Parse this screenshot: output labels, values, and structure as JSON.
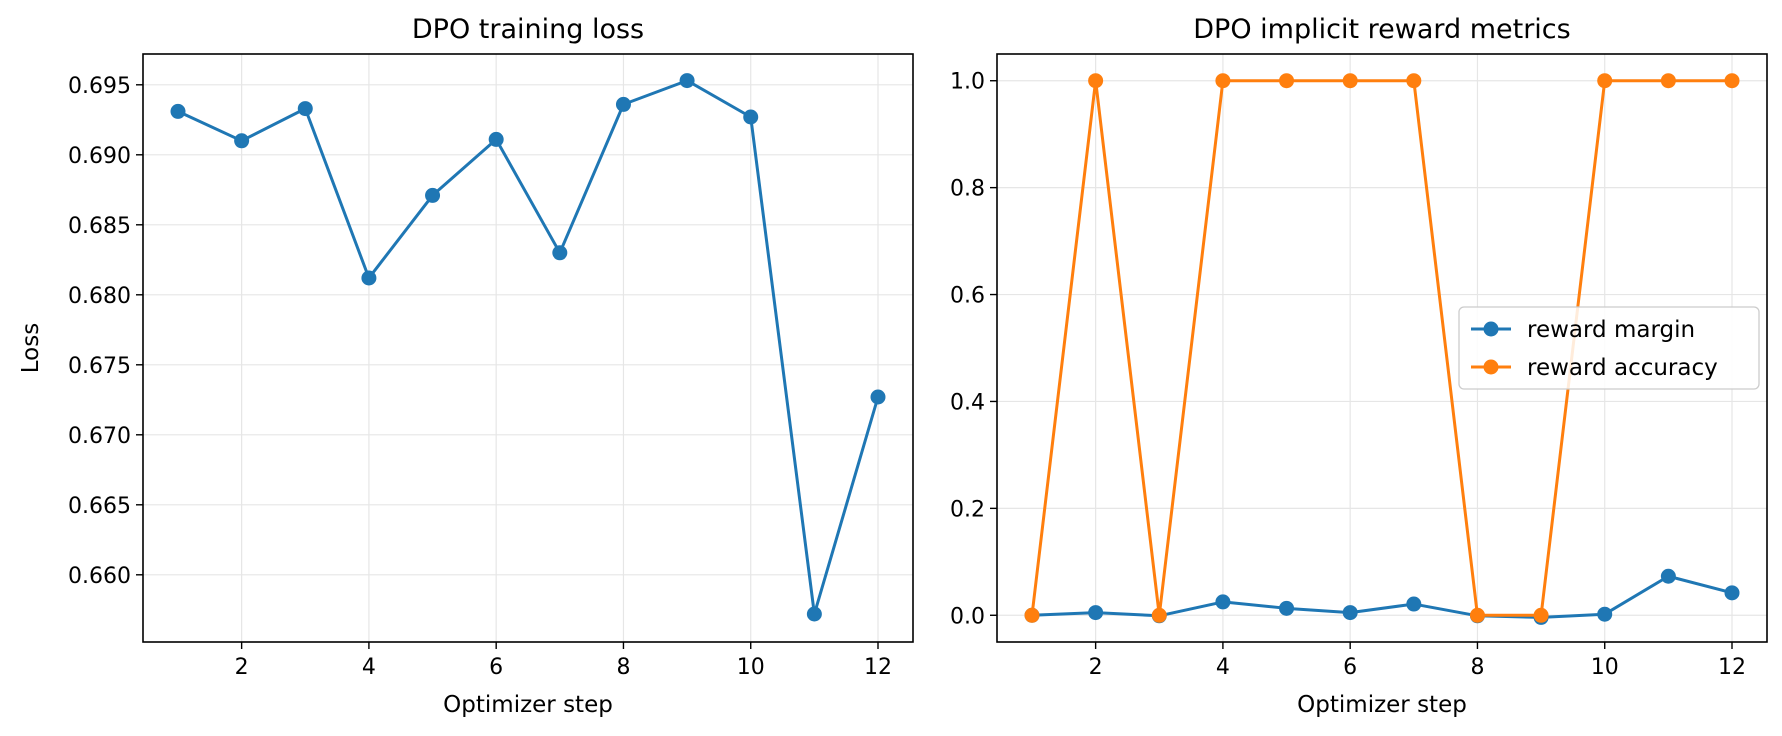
{
  "colors": {
    "blue": "#1f77b4",
    "orange": "#ff7f0e",
    "grid": "#e6e6e6",
    "axis": "#000000"
  },
  "chart_data": [
    {
      "type": "line",
      "title": "DPO training loss",
      "xlabel": "Optimizer step",
      "ylabel": "Loss",
      "grid": true,
      "xlim": [
        0.45,
        12.55
      ],
      "ylim": [
        0.6552,
        0.6972
      ],
      "xticks": [
        2,
        4,
        6,
        8,
        10,
        12
      ],
      "xtick_labels": [
        "2",
        "4",
        "6",
        "8",
        "10",
        "12"
      ],
      "yticks": [
        0.66,
        0.665,
        0.67,
        0.675,
        0.68,
        0.685,
        0.69,
        0.695
      ],
      "ytick_labels": [
        "0.660",
        "0.665",
        "0.670",
        "0.675",
        "0.680",
        "0.685",
        "0.690",
        "0.695"
      ],
      "x": [
        1,
        2,
        3,
        4,
        5,
        6,
        7,
        8,
        9,
        10,
        11,
        12
      ],
      "series": [
        {
          "color": "#1f77b4",
          "marker": "circle",
          "values": [
            0.6931,
            0.691,
            0.6933,
            0.6812,
            0.6871,
            0.6911,
            0.683,
            0.6936,
            0.6953,
            0.6927,
            0.6572,
            0.6727
          ]
        }
      ]
    },
    {
      "type": "line",
      "title": "DPO implicit reward metrics",
      "xlabel": "Optimizer step",
      "ylabel": "",
      "grid": true,
      "legend": "center-right",
      "xlim": [
        0.45,
        12.55
      ],
      "ylim": [
        -0.05,
        1.05
      ],
      "xticks": [
        2,
        4,
        6,
        8,
        10,
        12
      ],
      "xtick_labels": [
        "2",
        "4",
        "6",
        "8",
        "10",
        "12"
      ],
      "yticks": [
        0,
        0.2,
        0.4,
        0.6,
        0.8,
        1.0
      ],
      "ytick_labels": [
        "0.0",
        "0.2",
        "0.4",
        "0.6",
        "0.8",
        "1.0"
      ],
      "x": [
        1,
        2,
        3,
        4,
        5,
        6,
        7,
        8,
        9,
        10,
        11,
        12
      ],
      "series": [
        {
          "name": "reward margin",
          "color": "#1f77b4",
          "marker": "circle",
          "values": [
            0.0,
            0.005,
            -0.001,
            0.025,
            0.013,
            0.005,
            0.021,
            -0.001,
            -0.004,
            0.002,
            0.073,
            0.042
          ]
        },
        {
          "name": "reward accuracy",
          "color": "#ff7f0e",
          "marker": "circle",
          "values": [
            0,
            1,
            0,
            1,
            1,
            1,
            1,
            0,
            0,
            1,
            1,
            1
          ]
        }
      ]
    }
  ]
}
